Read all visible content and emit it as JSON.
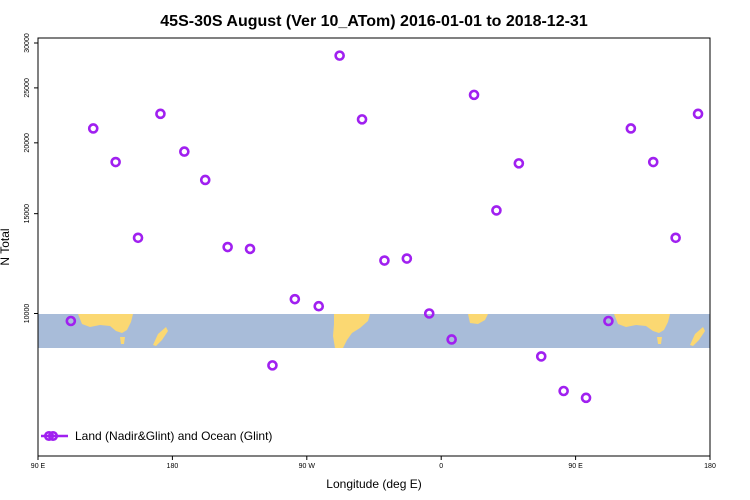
{
  "chart_data": {
    "type": "scatter",
    "title": "45S-30S August (Ver 10_ATom)   2016-01-01 to 2018-12-31",
    "xlabel": "Longitude (deg E)",
    "ylabel": "N Total",
    "x_ticks": [
      {
        "value": 90,
        "label": "90 E"
      },
      {
        "value": 180,
        "label": "180"
      },
      {
        "value": 270,
        "label": "90 W"
      },
      {
        "value": 360,
        "label": "0"
      },
      {
        "value": 450,
        "label": "90 E"
      },
      {
        "value": 540,
        "label": "180"
      }
    ],
    "xlim": [
      90,
      540
    ],
    "y_ticks": [
      10000,
      15000,
      20000,
      25000,
      30000
    ],
    "y_scale": "log",
    "ylim": [
      7000,
      30200
    ],
    "legend": {
      "label": "Land (Nadir&Glint) and Ocean (Glint)",
      "position": "bottom-left"
    },
    "marker_color": "#a020f0",
    "series": [
      {
        "name": "Land (Nadir&Glint) and Ocean (Glint)",
        "points": [
          {
            "x": 112,
            "y": 9700
          },
          {
            "x": 127,
            "y": 21200
          },
          {
            "x": 142,
            "y": 18500
          },
          {
            "x": 157,
            "y": 13600
          },
          {
            "x": 172,
            "y": 22500
          },
          {
            "x": 188,
            "y": 19300
          },
          {
            "x": 202,
            "y": 17200
          },
          {
            "x": 217,
            "y": 13100
          },
          {
            "x": 232,
            "y": 13000
          },
          {
            "x": 247,
            "y": 8100
          },
          {
            "x": 262,
            "y": 10600
          },
          {
            "x": 278,
            "y": 10300
          },
          {
            "x": 292,
            "y": 28500
          },
          {
            "x": 307,
            "y": 22000
          },
          {
            "x": 322,
            "y": 12400
          },
          {
            "x": 337,
            "y": 12500
          },
          {
            "x": 352,
            "y": 10000
          },
          {
            "x": 367,
            "y": 9000
          },
          {
            "x": 382,
            "y": 24300
          },
          {
            "x": 397,
            "y": 15200
          },
          {
            "x": 412,
            "y": 18400
          },
          {
            "x": 427,
            "y": 8400
          },
          {
            "x": 442,
            "y": 7300
          },
          {
            "x": 457,
            "y": 7100
          },
          {
            "x": 472,
            "y": 9700
          },
          {
            "x": 487,
            "y": 21200
          },
          {
            "x": 502,
            "y": 18500
          },
          {
            "x": 517,
            "y": 13600
          },
          {
            "x": 532,
            "y": 22500
          }
        ]
      }
    ]
  }
}
